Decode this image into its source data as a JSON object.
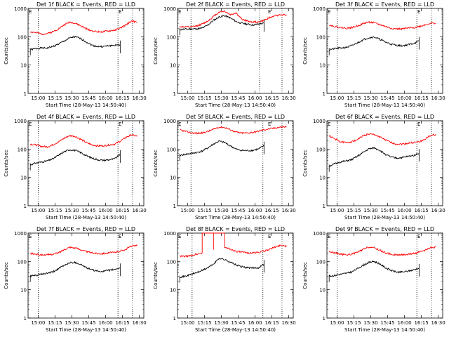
{
  "figure": {
    "panel_title_suffix": "BLACK = Events, RED = LLD",
    "xlabel": "Start Time (28-May-13 14:50:40)",
    "ylabel": "Counts/sec",
    "x_ticks": [
      "15:00",
      "15:15",
      "15:30",
      "15:45",
      "16:00",
      "16:15",
      "16:30"
    ],
    "y_ticks": [
      "1",
      "10",
      "100",
      "1000"
    ],
    "corner_mark": "E",
    "colors": {
      "events": "#000000",
      "lld": "#ff0000",
      "background": "#ffffff"
    }
  },
  "chart_data": [
    {
      "type": "line",
      "title": "Det 1f BLACK = Events, RED = LLD",
      "xlabel": "Start Time (28-May-13 14:50:40)",
      "ylabel": "Counts/sec",
      "yscale": "log",
      "ylim": [
        1,
        1000
      ],
      "x_ticks": [
        "15:00",
        "15:15",
        "15:30",
        "15:45",
        "16:00",
        "16:15",
        "16:30"
      ],
      "vlines": [
        "15:00",
        "16:11",
        "16:24"
      ],
      "x": [
        "14:53",
        "14:58",
        "15:03",
        "15:08",
        "15:13",
        "15:18",
        "15:23",
        "15:28",
        "15:33",
        "15:38",
        "15:43",
        "15:48",
        "15:53",
        "15:58",
        "16:03",
        "16:08",
        "16:13",
        "16:18",
        "16:23",
        "16:28"
      ],
      "series": [
        {
          "name": "Events",
          "values": [
            35,
            38,
            40,
            40,
            45,
            55,
            70,
            90,
            100,
            85,
            65,
            50,
            45,
            45,
            48,
            50,
            52,
            null,
            null,
            null
          ]
        },
        {
          "name": "LLD",
          "values": [
            150,
            140,
            125,
            130,
            150,
            190,
            260,
            330,
            300,
            240,
            190,
            160,
            150,
            150,
            160,
            170,
            200,
            260,
            360,
            320
          ]
        }
      ]
    },
    {
      "type": "line",
      "title": "Det 2f BLACK = Events, RED = LLD",
      "xlabel": "Start Time (28-May-13 14:50:40)",
      "ylabel": "Counts/sec",
      "yscale": "log",
      "ylim": [
        1,
        1000
      ],
      "x_ticks": [
        "15:00",
        "15:15",
        "15:30",
        "15:45",
        "16:00",
        "16:15",
        "16:30"
      ],
      "vlines": [
        "15:03",
        "16:04",
        "16:24"
      ],
      "x": [
        "14:53",
        "14:58",
        "15:03",
        "15:08",
        "15:13",
        "15:18",
        "15:23",
        "15:28",
        "15:33",
        "15:38",
        "15:43",
        "15:48",
        "15:53",
        "15:58",
        "16:03",
        "16:08",
        "16:13",
        "16:18",
        "16:23",
        "16:28"
      ],
      "series": [
        {
          "name": "Events",
          "values": [
            180,
            185,
            190,
            190,
            200,
            260,
            380,
            500,
            550,
            460,
            350,
            300,
            280,
            260,
            280,
            300,
            null,
            null,
            null,
            null
          ]
        },
        {
          "name": "LLD",
          "values": [
            230,
            220,
            220,
            240,
            280,
            360,
            520,
            750,
            800,
            600,
            700,
            420,
            360,
            330,
            330,
            380,
            470,
            560,
            600,
            600
          ]
        }
      ]
    },
    {
      "type": "line",
      "title": "Det 3f BLACK = Events, RED = LLD",
      "xlabel": "Start Time (28-May-13 14:50:40)",
      "ylabel": "Counts/sec",
      "yscale": "log",
      "ylim": [
        1,
        1000
      ],
      "x_ticks": [
        "15:00",
        "15:15",
        "15:30",
        "15:45",
        "16:00",
        "16:15",
        "16:30"
      ],
      "vlines": [
        "15:00",
        "16:11",
        "16:24"
      ],
      "x": [
        "14:53",
        "14:58",
        "15:03",
        "15:08",
        "15:13",
        "15:18",
        "15:23",
        "15:28",
        "15:33",
        "15:38",
        "15:43",
        "15:48",
        "15:53",
        "15:58",
        "16:03",
        "16:08",
        "16:13",
        "16:18",
        "16:23",
        "16:28"
      ],
      "series": [
        {
          "name": "Events",
          "values": [
            35,
            38,
            40,
            42,
            48,
            60,
            78,
            92,
            98,
            82,
            65,
            55,
            50,
            48,
            52,
            58,
            70,
            null,
            null,
            null
          ]
        },
        {
          "name": "LLD",
          "values": [
            260,
            230,
            210,
            200,
            210,
            240,
            290,
            330,
            310,
            270,
            230,
            200,
            190,
            190,
            200,
            210,
            230,
            260,
            300,
            300
          ]
        }
      ]
    },
    {
      "type": "line",
      "title": "Det 4f BLACK = Events, RED = LLD",
      "xlabel": "Start Time (28-May-13 14:50:40)",
      "ylabel": "Counts/sec",
      "yscale": "log",
      "ylim": [
        1,
        1000
      ],
      "x_ticks": [
        "15:00",
        "15:15",
        "15:30",
        "15:45",
        "16:00",
        "16:15",
        "16:30"
      ],
      "vlines": [
        "15:00",
        "16:11",
        "16:24"
      ],
      "x": [
        "14:53",
        "14:58",
        "15:03",
        "15:08",
        "15:13",
        "15:18",
        "15:23",
        "15:28",
        "15:33",
        "15:38",
        "15:43",
        "15:48",
        "15:53",
        "15:58",
        "16:03",
        "16:08",
        "16:13",
        "16:18",
        "16:23",
        "16:28"
      ],
      "series": [
        {
          "name": "Events",
          "values": [
            28,
            32,
            35,
            38,
            45,
            60,
            80,
            95,
            90,
            75,
            58,
            48,
            42,
            40,
            42,
            45,
            65,
            null,
            null,
            null
          ]
        },
        {
          "name": "LLD",
          "values": [
            150,
            140,
            125,
            120,
            140,
            180,
            240,
            300,
            280,
            220,
            170,
            140,
            130,
            130,
            140,
            150,
            190,
            260,
            320,
            280
          ]
        }
      ]
    },
    {
      "type": "line",
      "title": "Det 5f BLACK = Events, RED = LLD",
      "xlabel": "Start Time (28-May-13 14:50:40)",
      "ylabel": "Counts/sec",
      "yscale": "log",
      "ylim": [
        1,
        1000
      ],
      "x_ticks": [
        "15:00",
        "15:15",
        "15:30",
        "15:45",
        "16:00",
        "16:15",
        "16:30"
      ],
      "vlines": [
        "15:03",
        "16:07",
        "16:24"
      ],
      "x": [
        "14:53",
        "14:58",
        "15:03",
        "15:08",
        "15:13",
        "15:18",
        "15:23",
        "15:28",
        "15:33",
        "15:38",
        "15:43",
        "15:48",
        "15:53",
        "15:58",
        "16:03",
        "16:08",
        "16:13",
        "16:18",
        "16:23",
        "16:28"
      ],
      "series": [
        {
          "name": "Events",
          "values": [
            60,
            65,
            70,
            75,
            85,
            110,
            150,
            190,
            170,
            130,
            100,
            90,
            88,
            90,
            100,
            130,
            null,
            null,
            null,
            null
          ]
        },
        {
          "name": "LLD",
          "values": [
            480,
            420,
            380,
            360,
            370,
            420,
            500,
            600,
            580,
            480,
            400,
            370,
            370,
            390,
            430,
            480,
            520,
            560,
            600,
            620
          ]
        }
      ]
    },
    {
      "type": "line",
      "title": "Det 6f BLACK = Events, RED = LLD",
      "xlabel": "Start Time (28-May-13 14:50:40)",
      "ylabel": "Counts/sec",
      "yscale": "log",
      "ylim": [
        1,
        1000
      ],
      "x_ticks": [
        "15:00",
        "15:15",
        "15:30",
        "15:45",
        "16:00",
        "16:15",
        "16:30"
      ],
      "vlines": [
        "15:00",
        "16:11",
        "16:24"
      ],
      "x": [
        "14:53",
        "14:58",
        "15:03",
        "15:08",
        "15:13",
        "15:18",
        "15:23",
        "15:28",
        "15:33",
        "15:38",
        "15:43",
        "15:48",
        "15:53",
        "15:58",
        "16:03",
        "16:08",
        "16:13",
        "16:18",
        "16:23",
        "16:28"
      ],
      "series": [
        {
          "name": "Events",
          "values": [
            25,
            30,
            35,
            38,
            42,
            55,
            75,
            100,
            110,
            90,
            65,
            52,
            48,
            50,
            55,
            60,
            72,
            null,
            null,
            null
          ]
        },
        {
          "name": "LLD",
          "values": [
            290,
            230,
            180,
            170,
            180,
            220,
            290,
            340,
            320,
            270,
            210,
            170,
            150,
            150,
            160,
            170,
            180,
            220,
            300,
            320
          ]
        }
      ]
    },
    {
      "type": "line",
      "title": "Det 7f BLACK = Events, RED = LLD",
      "xlabel": "Start Time (28-May-13 14:50:40)",
      "ylabel": "Counts/sec",
      "yscale": "log",
      "ylim": [
        1,
        1000
      ],
      "x_ticks": [
        "15:00",
        "15:15",
        "15:30",
        "15:45",
        "16:00",
        "16:15",
        "16:30"
      ],
      "vlines": [
        "15:00",
        "16:11",
        "16:24"
      ],
      "x": [
        "14:53",
        "14:58",
        "15:03",
        "15:08",
        "15:13",
        "15:18",
        "15:23",
        "15:28",
        "15:33",
        "15:38",
        "15:43",
        "15:48",
        "15:53",
        "15:58",
        "16:03",
        "16:08",
        "16:13",
        "16:18",
        "16:23",
        "16:28"
      ],
      "series": [
        {
          "name": "Events",
          "values": [
            30,
            32,
            35,
            38,
            42,
            55,
            72,
            90,
            92,
            78,
            60,
            50,
            45,
            45,
            48,
            52,
            60,
            null,
            null,
            null
          ]
        },
        {
          "name": "LLD",
          "values": [
            190,
            180,
            170,
            170,
            180,
            200,
            260,
            320,
            300,
            260,
            220,
            200,
            190,
            190,
            200,
            210,
            230,
            270,
            350,
            360
          ]
        }
      ]
    },
    {
      "type": "line",
      "title": "Det 8f BLACK = Events, RED = LLD",
      "xlabel": "Start Time (28-May-13 14:50:40)",
      "ylabel": "Counts/sec",
      "yscale": "log",
      "ylim": [
        1,
        1000
      ],
      "x_ticks": [
        "15:00",
        "15:15",
        "15:30",
        "15:45",
        "16:00",
        "16:15",
        "16:30"
      ],
      "vlines": [
        "15:04",
        "16:07",
        "16:24"
      ],
      "x": [
        "14:53",
        "14:58",
        "15:03",
        "15:08",
        "15:13",
        "15:18",
        "15:23",
        "15:28",
        "15:33",
        "15:38",
        "15:43",
        "15:48",
        "15:53",
        "15:58",
        "16:03",
        "16:08",
        "16:13",
        "16:18",
        "16:23",
        "16:28"
      ],
      "series": [
        {
          "name": "Events",
          "values": [
            28,
            30,
            35,
            40,
            48,
            60,
            80,
            130,
            115,
            95,
            75,
            65,
            60,
            58,
            60,
            80,
            null,
            null,
            null,
            null
          ]
        },
        {
          "name": "LLD",
          "values": [
            150,
            150,
            160,
            180,
            200,
            1000,
            260,
            1000,
            310,
            270,
            230,
            210,
            200,
            200,
            210,
            230,
            270,
            320,
            380,
            340
          ]
        }
      ]
    },
    {
      "type": "line",
      "title": "Det 9f BLACK = Events, RED = LLD",
      "xlabel": "Start Time (28-May-13 14:50:40)",
      "ylabel": "Counts/sec",
      "yscale": "log",
      "ylim": [
        1,
        1000
      ],
      "x_ticks": [
        "15:00",
        "15:15",
        "15:30",
        "15:45",
        "16:00",
        "16:15",
        "16:30"
      ],
      "vlines": [
        "15:00",
        "16:11",
        "16:24"
      ],
      "x": [
        "14:53",
        "14:58",
        "15:03",
        "15:08",
        "15:13",
        "15:18",
        "15:23",
        "15:28",
        "15:33",
        "15:38",
        "15:43",
        "15:48",
        "15:53",
        "15:58",
        "16:03",
        "16:08",
        "16:13",
        "16:18",
        "16:23",
        "16:28"
      ],
      "series": [
        {
          "name": "Events",
          "values": [
            30,
            32,
            35,
            38,
            42,
            55,
            72,
            92,
            100,
            82,
            60,
            48,
            42,
            42,
            45,
            50,
            58,
            null,
            null,
            null
          ]
        },
        {
          "name": "LLD",
          "values": [
            220,
            200,
            180,
            170,
            180,
            210,
            260,
            320,
            300,
            250,
            200,
            180,
            170,
            170,
            180,
            190,
            210,
            240,
            300,
            320
          ]
        }
      ]
    }
  ]
}
